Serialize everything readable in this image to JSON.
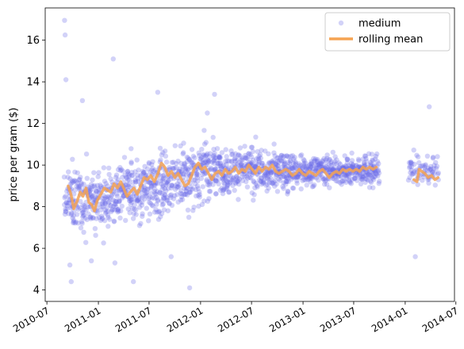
{
  "chart_data": {
    "type": "scatter",
    "title": "",
    "xlabel": "",
    "ylabel": "price per gram ($)",
    "xlim": [
      "2010-06-25",
      "2014-06-26"
    ],
    "ylim": [
      3.45,
      17.55
    ],
    "x_ticks": [
      "2010-07",
      "2011-01",
      "2011-07",
      "2012-01",
      "2012-07",
      "2013-01",
      "2013-07",
      "2014-01",
      "2014-07"
    ],
    "y_ticks": [
      4,
      6,
      8,
      10,
      12,
      14,
      16
    ],
    "grid": false,
    "legend_position": "top-right",
    "series": [
      {
        "name": "medium",
        "kind": "scatter",
        "color": "#6a6ae8",
        "alpha": 0.3,
        "data_range": [
          "2010-09-01",
          "2013-09-30"
        ],
        "extra_range": [
          "2014-01-13",
          "2014-04-30"
        ],
        "outliers": [
          [
            "2010-09-02",
            16.95
          ],
          [
            "2010-09-04",
            16.25
          ],
          [
            "2010-09-07",
            14.1
          ],
          [
            "2011-02-23",
            15.1
          ],
          [
            "2011-08-01",
            13.5
          ],
          [
            "2011-11-23",
            4.1
          ],
          [
            "2010-09-21",
            5.2
          ],
          [
            "2010-09-26",
            4.4
          ],
          [
            "2011-03-01",
            5.3
          ],
          [
            "2011-05-06",
            4.4
          ],
          [
            "2012-01-25",
            12.5
          ],
          [
            "2014-03-28",
            12.8
          ],
          [
            "2014-02-06",
            5.6
          ],
          [
            "2010-11-05",
            13.1
          ],
          [
            "2012-02-20",
            13.4
          ],
          [
            "2010-12-07",
            5.4
          ],
          [
            "2011-09-18",
            5.6
          ]
        ]
      },
      {
        "name": "rolling mean",
        "kind": "line",
        "color": "#f5a352",
        "points": [
          [
            "2010-09-15",
            9.0
          ],
          [
            "2010-09-25",
            8.6
          ],
          [
            "2010-10-05",
            7.9
          ],
          [
            "2010-10-18",
            8.3
          ],
          [
            "2010-10-28",
            8.7
          ],
          [
            "2010-11-07",
            8.5
          ],
          [
            "2010-11-18",
            8.9
          ],
          [
            "2010-11-28",
            8.2
          ],
          [
            "2010-12-08",
            8.1
          ],
          [
            "2010-12-18",
            7.8
          ],
          [
            "2010-12-28",
            8.3
          ],
          [
            "2011-01-10",
            8.6
          ],
          [
            "2011-01-22",
            8.9
          ],
          [
            "2011-02-02",
            8.8
          ],
          [
            "2011-02-14",
            8.7
          ],
          [
            "2011-02-26",
            9.1
          ],
          [
            "2011-03-10",
            8.9
          ],
          [
            "2011-03-22",
            9.2
          ],
          [
            "2011-04-01",
            8.9
          ],
          [
            "2011-04-13",
            8.5
          ],
          [
            "2011-04-25",
            8.7
          ],
          [
            "2011-05-08",
            8.9
          ],
          [
            "2011-05-20",
            8.6
          ],
          [
            "2011-06-01",
            9.0
          ],
          [
            "2011-06-13",
            9.4
          ],
          [
            "2011-06-25",
            9.3
          ],
          [
            "2011-07-07",
            9.5
          ],
          [
            "2011-07-20",
            9.2
          ],
          [
            "2011-08-02",
            9.6
          ],
          [
            "2011-08-14",
            10.1
          ],
          [
            "2011-08-26",
            9.9
          ],
          [
            "2011-09-07",
            9.5
          ],
          [
            "2011-09-19",
            9.7
          ],
          [
            "2011-10-01",
            9.4
          ],
          [
            "2011-10-13",
            9.6
          ],
          [
            "2011-10-25",
            9.3
          ],
          [
            "2011-11-06",
            9.0
          ],
          [
            "2011-11-18",
            9.1
          ],
          [
            "2011-11-30",
            9.5
          ],
          [
            "2011-12-12",
            9.9
          ],
          [
            "2011-12-24",
            10.1
          ],
          [
            "2012-01-05",
            9.8
          ],
          [
            "2012-01-17",
            9.9
          ],
          [
            "2012-01-29",
            9.6
          ],
          [
            "2012-02-10",
            9.3
          ],
          [
            "2012-02-22",
            9.6
          ],
          [
            "2012-03-05",
            9.7
          ],
          [
            "2012-03-17",
            9.5
          ],
          [
            "2012-03-29",
            9.8
          ],
          [
            "2012-04-10",
            9.6
          ],
          [
            "2012-04-22",
            9.7
          ],
          [
            "2012-05-04",
            9.9
          ],
          [
            "2012-05-16",
            9.6
          ],
          [
            "2012-05-28",
            9.8
          ],
          [
            "2012-06-09",
            9.7
          ],
          [
            "2012-06-21",
            10.0
          ],
          [
            "2012-07-03",
            9.8
          ],
          [
            "2012-07-15",
            9.6
          ],
          [
            "2012-07-27",
            9.9
          ],
          [
            "2012-08-08",
            9.7
          ],
          [
            "2012-08-20",
            9.9
          ],
          [
            "2012-09-01",
            9.8
          ],
          [
            "2012-09-13",
            10.0
          ],
          [
            "2012-09-25",
            9.7
          ],
          [
            "2012-10-07",
            9.6
          ],
          [
            "2012-10-19",
            9.7
          ],
          [
            "2012-10-31",
            9.8
          ],
          [
            "2012-11-12",
            9.7
          ],
          [
            "2012-11-24",
            9.5
          ],
          [
            "2012-12-06",
            9.6
          ],
          [
            "2012-12-18",
            9.8
          ],
          [
            "2012-12-30",
            9.6
          ],
          [
            "2013-01-11",
            9.5
          ],
          [
            "2013-01-23",
            9.7
          ],
          [
            "2013-02-04",
            9.6
          ],
          [
            "2013-02-16",
            9.5
          ],
          [
            "2013-02-28",
            9.7
          ],
          [
            "2013-03-12",
            9.8
          ],
          [
            "2013-03-24",
            9.6
          ],
          [
            "2013-04-05",
            9.4
          ],
          [
            "2013-04-17",
            9.6
          ],
          [
            "2013-04-29",
            9.7
          ],
          [
            "2013-05-11",
            9.6
          ],
          [
            "2013-05-23",
            9.8
          ],
          [
            "2013-06-04",
            9.7
          ],
          [
            "2013-06-16",
            9.8
          ],
          [
            "2013-06-28",
            9.7
          ],
          [
            "2013-07-10",
            9.8
          ],
          [
            "2013-07-22",
            9.7
          ],
          [
            "2013-08-03",
            9.9
          ],
          [
            "2013-08-15",
            9.8
          ],
          [
            "2013-08-27",
            9.9
          ],
          [
            "2013-09-08",
            9.8
          ],
          [
            "2013-09-20",
            9.9
          ]
        ],
        "points_2": [
          [
            "2014-02-01",
            9.3
          ],
          [
            "2014-02-12",
            9.2
          ],
          [
            "2014-02-20",
            9.8
          ],
          [
            "2014-03-01",
            9.7
          ],
          [
            "2014-03-12",
            9.6
          ],
          [
            "2014-03-24",
            9.4
          ],
          [
            "2014-04-05",
            9.5
          ],
          [
            "2014-04-17",
            9.3
          ],
          [
            "2014-04-28",
            9.4
          ]
        ]
      }
    ]
  }
}
